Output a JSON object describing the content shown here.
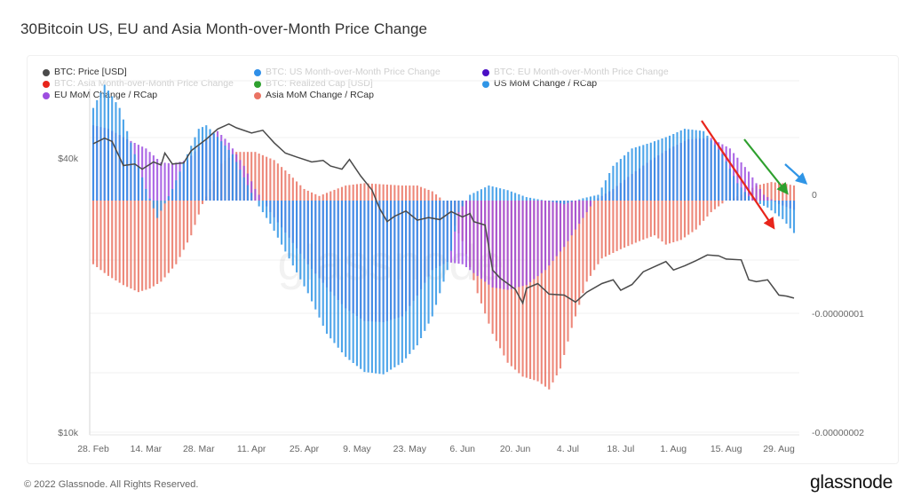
{
  "page": {
    "title": "30Bitcoin US, EU and Asia Month-over-Month Price Change",
    "copyright": "© 2022 Glassnode. All Rights Reserved.",
    "brand": "glassnode"
  },
  "legend": [
    {
      "label": "BTC: Price [USD]",
      "color": "#4a4a4a",
      "active": true
    },
    {
      "label": "BTC: US Month-over-Month Price Change",
      "color": "#2f8fe8",
      "active": false
    },
    {
      "label": "BTC: EU Month-over-Month Price Change",
      "color": "#4b0fc4",
      "active": false
    },
    {
      "label": "BTC: Asia Month-over-Month Price Change",
      "color": "#e8251b",
      "active": false
    },
    {
      "label": "BTC: Realized Cap [USD]",
      "color": "#2ea02e",
      "active": false
    },
    {
      "label": "US MoM Change / RCap",
      "color": "#2f95e6",
      "active": true
    },
    {
      "label": "EU MoM Change / RCap",
      "color": "#9d4ee0",
      "active": true
    },
    {
      "label": "Asia MoM Change / RCap",
      "color": "#ea7363",
      "active": true
    }
  ],
  "chart_data": {
    "type": "bar",
    "title": "30Bitcoin US, EU and Asia Month-over-Month Price Change",
    "xlabel": "",
    "x_ticks": [
      "28. Feb",
      "14. Mar",
      "28. Mar",
      "11. Apr",
      "25. Apr",
      "9. May",
      "23. May",
      "6. Jun",
      "20. Jun",
      "4. Jul",
      "18. Jul",
      "1. Aug",
      "15. Aug",
      "29. Aug"
    ],
    "x_range": [
      "2022-02-28",
      "2022-09-01"
    ],
    "left_axis": {
      "label": "BTC: Price [USD]",
      "scale": "log",
      "ticks": [
        "$40k",
        "$10k"
      ],
      "tick_values": [
        40000,
        10000
      ],
      "range": [
        10000,
        60000
      ]
    },
    "right_axis": {
      "label": "MoM Change / RCap",
      "ticks": [
        "0",
        "-0.00000001",
        "-0.00000002"
      ],
      "tick_values": [
        0,
        -1e-08,
        -2e-08
      ],
      "range": [
        -2e-08,
        1e-08
      ]
    },
    "grid": true,
    "legend_position": "top-left",
    "watermark": "glassnode",
    "annotations": [
      {
        "type": "arrow",
        "color": "#e8251b",
        "from": "2022-08-06",
        "to": "2022-08-20",
        "direction": "down"
      },
      {
        "type": "arrow",
        "color": "#2ea02e",
        "from": "2022-08-15",
        "to": "2022-08-26",
        "direction": "down"
      },
      {
        "type": "arrow",
        "color": "#2f95e6",
        "from": "2022-08-29",
        "to": "2022-09-01",
        "direction": "down"
      }
    ],
    "series_keypoints_note": "Values sampled at weekly keypoints (day offset from 28 Feb) and interpolated daily; MoM/RCap values in units of 1e-9",
    "series": [
      {
        "name": "US MoM Change / RCap",
        "axis": "right",
        "kind": "bar",
        "color": "#2f95e6",
        "unit": "1e-9",
        "keypoints": [
          [
            0,
            8
          ],
          [
            3,
            10
          ],
          [
            7,
            8
          ],
          [
            11,
            4
          ],
          [
            14,
            1
          ],
          [
            17,
            -1.5
          ],
          [
            21,
            1
          ],
          [
            25,
            4
          ],
          [
            28,
            6.2
          ],
          [
            30,
            6.5
          ],
          [
            33,
            5.5
          ],
          [
            37,
            4
          ],
          [
            40,
            2
          ],
          [
            43,
            0
          ],
          [
            47,
            -2
          ],
          [
            52,
            -5
          ],
          [
            57,
            -8
          ],
          [
            62,
            -11.5
          ],
          [
            67,
            -13.5
          ],
          [
            72,
            -14.8
          ],
          [
            77,
            -15
          ],
          [
            82,
            -14
          ],
          [
            86,
            -12.5
          ],
          [
            90,
            -10
          ],
          [
            94,
            -6
          ],
          [
            97,
            -1
          ],
          [
            100,
            0.5
          ],
          [
            105,
            1.3
          ],
          [
            110,
            0.9
          ],
          [
            115,
            0.3
          ],
          [
            120,
            0
          ],
          [
            125,
            -0.3
          ],
          [
            130,
            0.2
          ],
          [
            134,
            0.5
          ],
          [
            138,
            3
          ],
          [
            143,
            4.5
          ],
          [
            148,
            5
          ],
          [
            153,
            5.6
          ],
          [
            157,
            6.2
          ],
          [
            162,
            6
          ],
          [
            167,
            4
          ],
          [
            171,
            1.5
          ],
          [
            175,
            0
          ],
          [
            179,
            -0.6
          ],
          [
            183,
            -1.6
          ],
          [
            186,
            -2.8
          ]
        ]
      },
      {
        "name": "EU MoM Change / RCap",
        "axis": "right",
        "kind": "bar",
        "color": "#9d4ee0",
        "unit": "1e-9",
        "keypoints": [
          [
            0,
            6.5
          ],
          [
            4,
            6.2
          ],
          [
            9,
            5.3
          ],
          [
            14,
            4.5
          ],
          [
            18,
            3.3
          ],
          [
            21,
            3.2
          ],
          [
            25,
            3.5
          ],
          [
            29,
            5
          ],
          [
            33,
            6
          ],
          [
            36,
            5
          ],
          [
            40,
            3
          ],
          [
            43,
            1
          ],
          [
            47,
            -1
          ],
          [
            52,
            -3.2
          ],
          [
            57,
            -5.5
          ],
          [
            62,
            -7.5
          ],
          [
            67,
            -9.3
          ],
          [
            72,
            -10.4
          ],
          [
            77,
            -10.5
          ],
          [
            82,
            -10
          ],
          [
            86,
            -8.2
          ],
          [
            90,
            -6
          ],
          [
            94,
            -5.3
          ],
          [
            98,
            -5.5
          ],
          [
            102,
            -6.5
          ],
          [
            106,
            -7.5
          ],
          [
            110,
            -7.7
          ],
          [
            115,
            -7.3
          ],
          [
            120,
            -6
          ],
          [
            125,
            -4
          ],
          [
            129,
            -2
          ],
          [
            133,
            0
          ],
          [
            138,
            1
          ],
          [
            143,
            2.3
          ],
          [
            148,
            3.5
          ],
          [
            153,
            4.5
          ],
          [
            158,
            5.3
          ],
          [
            164,
            5.4
          ],
          [
            169,
            4.5
          ],
          [
            174,
            2.5
          ],
          [
            178,
            0.5
          ],
          [
            182,
            -0.3
          ],
          [
            186,
            -0.8
          ]
        ]
      },
      {
        "name": "Asia MoM Change / RCap",
        "axis": "right",
        "kind": "bar",
        "color": "#ea7363",
        "unit": "1e-9",
        "keypoints": [
          [
            0,
            -5.5
          ],
          [
            4,
            -6.5
          ],
          [
            8,
            -7.3
          ],
          [
            12,
            -7.9
          ],
          [
            15,
            -7.6
          ],
          [
            18,
            -7
          ],
          [
            22,
            -5.5
          ],
          [
            26,
            -3
          ],
          [
            29,
            -0.3
          ],
          [
            31,
            1
          ],
          [
            34,
            3.2
          ],
          [
            38,
            4.2
          ],
          [
            43,
            4.2
          ],
          [
            48,
            3.5
          ],
          [
            52,
            2.3
          ],
          [
            56,
            1
          ],
          [
            60,
            0.4
          ],
          [
            63,
            0.8
          ],
          [
            67,
            1.3
          ],
          [
            72,
            1.5
          ],
          [
            77,
            1.4
          ],
          [
            82,
            1.3
          ],
          [
            86,
            1.3
          ],
          [
            90,
            0.8
          ],
          [
            93,
            0
          ],
          [
            95,
            -1.5
          ],
          [
            98,
            -3.5
          ],
          [
            102,
            -8
          ],
          [
            106,
            -11.5
          ],
          [
            110,
            -14
          ],
          [
            114,
            -15.2
          ],
          [
            118,
            -15.6
          ],
          [
            121,
            -16.3
          ],
          [
            124,
            -14.5
          ],
          [
            127,
            -11
          ],
          [
            131,
            -7
          ],
          [
            135,
            -5
          ],
          [
            140,
            -4.2
          ],
          [
            145,
            -3.5
          ],
          [
            149,
            -3
          ],
          [
            152,
            -3.8
          ],
          [
            156,
            -3.4
          ],
          [
            160,
            -2.5
          ],
          [
            164,
            -1
          ],
          [
            168,
            0
          ],
          [
            172,
            0.5
          ],
          [
            176,
            1.3
          ],
          [
            180,
            1.6
          ],
          [
            183,
            1.5
          ],
          [
            186,
            1.3
          ]
        ]
      },
      {
        "name": "BTC: Price [USD]",
        "axis": "left",
        "kind": "line",
        "color": "#4a4a4a",
        "unit": "USD",
        "keypoints": [
          [
            0,
            43000
          ],
          [
            3,
            44200
          ],
          [
            5,
            43500
          ],
          [
            8,
            38500
          ],
          [
            11,
            38800
          ],
          [
            13,
            37800
          ],
          [
            16,
            39200
          ],
          [
            18,
            38600
          ],
          [
            19,
            41000
          ],
          [
            21,
            38800
          ],
          [
            24,
            39000
          ],
          [
            26,
            41500
          ],
          [
            30,
            44000
          ],
          [
            33,
            46300
          ],
          [
            36,
            47500
          ],
          [
            38,
            46600
          ],
          [
            42,
            45400
          ],
          [
            45,
            46000
          ],
          [
            48,
            43200
          ],
          [
            51,
            41000
          ],
          [
            54,
            40200
          ],
          [
            58,
            39200
          ],
          [
            61,
            39500
          ],
          [
            63,
            38400
          ],
          [
            66,
            37800
          ],
          [
            68,
            39700
          ],
          [
            71,
            36500
          ],
          [
            74,
            34000
          ],
          [
            76,
            31000
          ],
          [
            78,
            29000
          ],
          [
            80,
            29800
          ],
          [
            83,
            30600
          ],
          [
            86,
            29200
          ],
          [
            89,
            29600
          ],
          [
            92,
            29300
          ],
          [
            95,
            30500
          ],
          [
            98,
            29700
          ],
          [
            100,
            30200
          ],
          [
            101,
            29000
          ],
          [
            104,
            28500
          ],
          [
            106,
            22700
          ],
          [
            108,
            21800
          ],
          [
            110,
            21200
          ],
          [
            112,
            20600
          ],
          [
            114,
            19200
          ],
          [
            115,
            20700
          ],
          [
            118,
            21200
          ],
          [
            121,
            20100
          ],
          [
            125,
            20000
          ],
          [
            128,
            19300
          ],
          [
            131,
            20300
          ],
          [
            135,
            21200
          ],
          [
            138,
            21600
          ],
          [
            140,
            20500
          ],
          [
            143,
            21100
          ],
          [
            146,
            22500
          ],
          [
            149,
            23100
          ],
          [
            152,
            23700
          ],
          [
            154,
            22700
          ],
          [
            157,
            23200
          ],
          [
            160,
            23800
          ],
          [
            163,
            24500
          ],
          [
            166,
            24400
          ],
          [
            168,
            24000
          ],
          [
            172,
            23900
          ],
          [
            174,
            21600
          ],
          [
            176,
            21400
          ],
          [
            179,
            21600
          ],
          [
            182,
            20000
          ],
          [
            184,
            19900
          ],
          [
            186,
            19700
          ]
        ]
      }
    ]
  }
}
